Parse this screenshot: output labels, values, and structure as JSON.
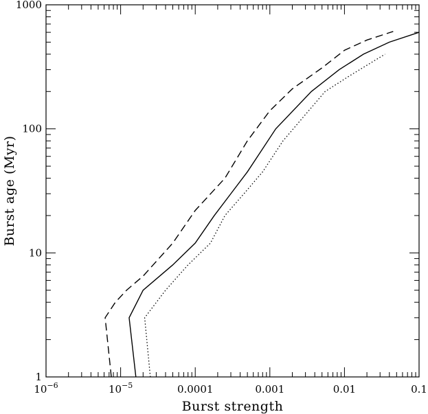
{
  "chart_data": {
    "type": "line",
    "xlabel": "Burst strength",
    "ylabel": "Burst age (Myr)",
    "xscale": "log",
    "yscale": "log",
    "xlim": [
      1e-06,
      0.1
    ],
    "ylim": [
      1,
      1000
    ],
    "x_tick_labels": [
      {
        "value": 1e-06,
        "base": "10",
        "exp": "−6"
      },
      {
        "value": 1e-05,
        "base": "10",
        "exp": "−5"
      },
      {
        "value": 0.0001,
        "text": "0.0001"
      },
      {
        "value": 0.001,
        "text": "0.001"
      },
      {
        "value": 0.01,
        "text": "0.01"
      },
      {
        "value": 0.1,
        "text": "0.1"
      }
    ],
    "y_tick_labels": [
      {
        "value": 1,
        "text": "1"
      },
      {
        "value": 10,
        "text": "10"
      },
      {
        "value": 100,
        "text": "100"
      },
      {
        "value": 1000,
        "text": "1000"
      }
    ],
    "series": [
      {
        "style": "dashed",
        "points": [
          [
            7.5e-06,
            1
          ],
          [
            6.2e-06,
            3
          ],
          [
            8.5e-06,
            4
          ],
          [
            1.2e-05,
            5
          ],
          [
            2e-05,
            6.5
          ],
          [
            5e-05,
            12
          ],
          [
            0.0001,
            22
          ],
          [
            0.00025,
            40
          ],
          [
            0.0005,
            80
          ],
          [
            0.001,
            140
          ],
          [
            0.002,
            210
          ],
          [
            0.005,
            310
          ],
          [
            0.01,
            430
          ],
          [
            0.02,
            520
          ],
          [
            0.045,
            610
          ]
        ]
      },
      {
        "style": "solid",
        "points": [
          [
            1.6e-05,
            1
          ],
          [
            1.3e-05,
            3
          ],
          [
            2e-05,
            5
          ],
          [
            5e-05,
            8
          ],
          [
            0.0001,
            12
          ],
          [
            0.00018,
            20
          ],
          [
            0.0003,
            30
          ],
          [
            0.0005,
            45
          ],
          [
            0.0012,
            100
          ],
          [
            0.0036,
            200
          ],
          [
            0.0085,
            300
          ],
          [
            0.018,
            400
          ],
          [
            0.04,
            500
          ],
          [
            0.1,
            600
          ]
        ]
      },
      {
        "style": "dotted",
        "points": [
          [
            2.5e-05,
            1
          ],
          [
            2.1e-05,
            3
          ],
          [
            4e-05,
            5
          ],
          [
            8e-05,
            8
          ],
          [
            0.00016,
            12
          ],
          [
            0.00025,
            20
          ],
          [
            0.00045,
            30
          ],
          [
            0.0008,
            45
          ],
          [
            0.0015,
            80
          ],
          [
            0.0055,
            200
          ],
          [
            0.012,
            270
          ],
          [
            0.035,
            400
          ]
        ]
      }
    ]
  }
}
